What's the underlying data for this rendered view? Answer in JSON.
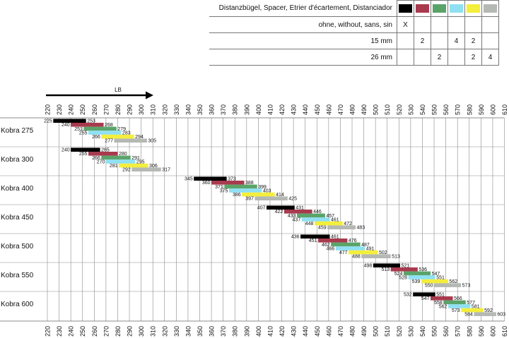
{
  "table": {
    "header": "Distanzbügel, Spacer, Etrier d'écartement, Distanciador",
    "swatches": [
      {
        "name": "black",
        "color": "#000000"
      },
      {
        "name": "red",
        "color": "#a83a4e"
      },
      {
        "name": "green",
        "color": "#5aa46a"
      },
      {
        "name": "cyan",
        "color": "#8fe0f2"
      },
      {
        "name": "yellow",
        "color": "#f4ee3c"
      },
      {
        "name": "gray",
        "color": "#b5b9b3"
      }
    ],
    "rows": [
      {
        "label": "ohne, without, sans, sin",
        "cells": [
          "X",
          "",
          "",
          "",
          "",
          ""
        ]
      },
      {
        "label": "15 mm",
        "cells": [
          "",
          "2",
          "",
          "4",
          "2",
          ""
        ]
      },
      {
        "label": "26 mm",
        "cells": [
          "",
          "",
          "2",
          "",
          "2",
          "4"
        ]
      }
    ]
  },
  "chart_data": {
    "type": "range-bar",
    "arrow_label": "LB",
    "x_ticks": [
      220,
      230,
      240,
      250,
      260,
      270,
      280,
      290,
      300,
      310,
      320,
      330,
      340,
      350,
      360,
      370,
      380,
      390,
      400,
      410,
      420,
      430,
      440,
      450,
      460,
      470,
      480,
      490,
      500,
      510,
      520,
      530,
      540,
      550,
      560,
      570,
      580,
      590,
      600,
      610
    ],
    "xlim": [
      220,
      610
    ],
    "grid": true,
    "series_colors": [
      "#000000",
      "#a83a4e",
      "#5aa46a",
      "#8fe0f2",
      "#f4ee3c",
      "#b5b9b3"
    ],
    "groups": [
      {
        "label": "Kobra 275",
        "bars": [
          [
            225,
            253
          ],
          [
            240,
            268
          ],
          [
            251,
            279
          ],
          [
            255,
            283
          ],
          [
            266,
            294
          ],
          [
            277,
            305
          ]
        ]
      },
      {
        "label": "Kobra 300",
        "bars": [
          [
            240,
            265
          ],
          [
            255,
            280
          ],
          [
            266,
            291
          ],
          [
            270,
            295
          ],
          [
            281,
            306
          ],
          [
            292,
            317
          ]
        ]
      },
      {
        "label": "Kobra 400",
        "bars": [
          [
            345,
            373
          ],
          [
            360,
            388
          ],
          [
            371,
            399
          ],
          [
            375,
            403
          ],
          [
            386,
            414
          ],
          [
            397,
            425
          ]
        ]
      },
      {
        "label": "Kobra 450",
        "bars": [
          [
            407,
            431
          ],
          [
            422,
            446
          ],
          [
            433,
            457
          ],
          [
            437,
            461
          ],
          [
            448,
            472
          ],
          [
            459,
            483
          ]
        ]
      },
      {
        "label": "Kobra 500",
        "bars": [
          [
            436,
            461
          ],
          [
            451,
            476
          ],
          [
            462,
            487
          ],
          [
            466,
            491
          ],
          [
            477,
            502
          ],
          [
            488,
            513
          ]
        ]
      },
      {
        "label": "Kobra 550",
        "bars": [
          [
            498,
            521
          ],
          [
            513,
            536
          ],
          [
            524,
            547
          ],
          [
            528,
            551
          ],
          [
            539,
            562
          ],
          [
            550,
            573
          ]
        ]
      },
      {
        "label": "Kobra 600",
        "bars": [
          [
            532,
            551
          ],
          [
            547,
            566
          ],
          [
            558,
            577
          ],
          [
            562,
            581
          ],
          [
            573,
            592
          ],
          [
            584,
            603
          ]
        ]
      }
    ]
  }
}
